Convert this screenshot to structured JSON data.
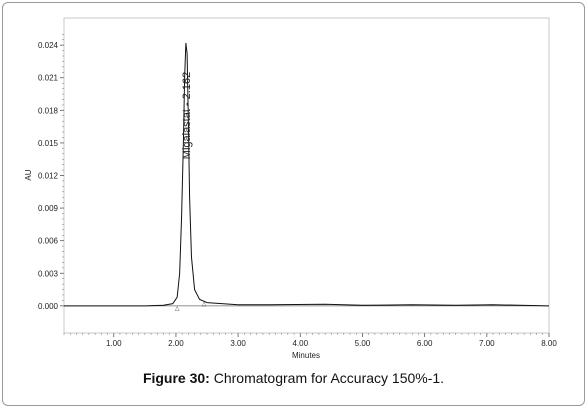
{
  "caption": {
    "figure_label": "Figure 30:",
    "text": "Chromatogram for Accuracy 150%-1."
  },
  "chart_data": {
    "type": "line",
    "xlabel": "Minutes",
    "ylabel": "AU",
    "xlim": [
      0.2,
      8.0
    ],
    "ylim": [
      -0.0025,
      0.0265
    ],
    "x_ticks": [
      "1.00",
      "2.00",
      "3.00",
      "4.00",
      "5.00",
      "6.00",
      "7.00",
      "8.00"
    ],
    "y_ticks": [
      "0.000",
      "0.003",
      "0.006",
      "0.009",
      "0.012",
      "0.015",
      "0.018",
      "0.021",
      "0.024"
    ],
    "grid": false,
    "series": [
      {
        "x": [
          0.2,
          1.5,
          1.8,
          1.95,
          2.02,
          2.06,
          2.09,
          2.12,
          2.14,
          2.16,
          2.18,
          2.2,
          2.22,
          2.25,
          2.3,
          2.38,
          2.5,
          3.0,
          3.5,
          4.4,
          5.0,
          5.8,
          6.5,
          7.1,
          8.0
        ],
        "y": [
          0.0,
          0.0,
          5e-05,
          0.0002,
          0.0008,
          0.003,
          0.008,
          0.015,
          0.021,
          0.0242,
          0.0232,
          0.017,
          0.01,
          0.0045,
          0.0015,
          0.0006,
          0.0003,
          0.0001,
          0.0001,
          0.00015,
          5e-05,
          0.0001,
          5e-05,
          0.0001,
          0.0
        ]
      }
    ],
    "annotations": [
      {
        "text": "Migalastat - 2.162",
        "x": 2.162,
        "y": 0.0135
      }
    ],
    "integration_markers": [
      {
        "x": 2.02,
        "y": 0.0
      },
      {
        "x": 2.45,
        "y": 0.0004
      }
    ]
  }
}
